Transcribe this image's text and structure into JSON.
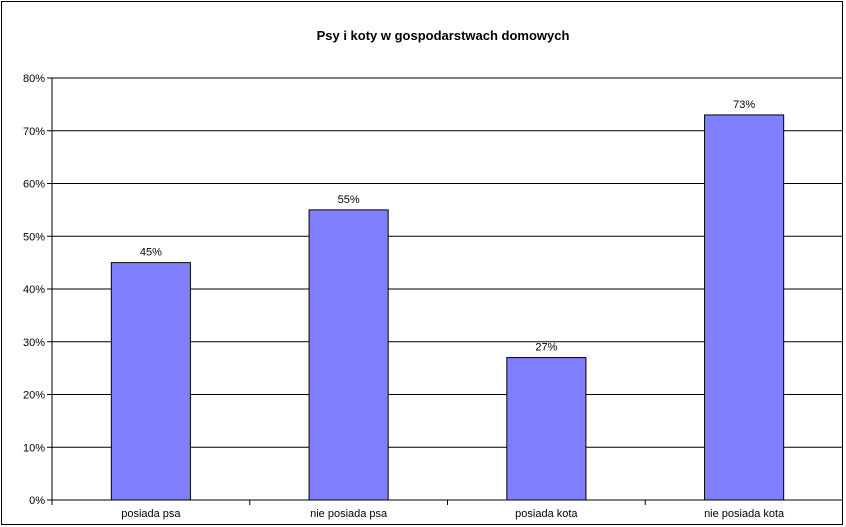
{
  "chart_data": {
    "type": "bar",
    "title": "Psy i koty w gospodarstwach domowych",
    "categories": [
      "posiada psa",
      "nie posiada psa",
      "posiada kota",
      "nie posiada kota"
    ],
    "values": [
      45,
      55,
      27,
      73
    ],
    "data_labels": [
      "45%",
      "55%",
      "27%",
      "73%"
    ],
    "y_ticks": [
      "0%",
      "10%",
      "20%",
      "30%",
      "40%",
      "50%",
      "60%",
      "70%",
      "80%"
    ],
    "ylim": [
      0,
      80
    ],
    "grid": true,
    "legend": "none",
    "bar_color": "#8080ff"
  }
}
